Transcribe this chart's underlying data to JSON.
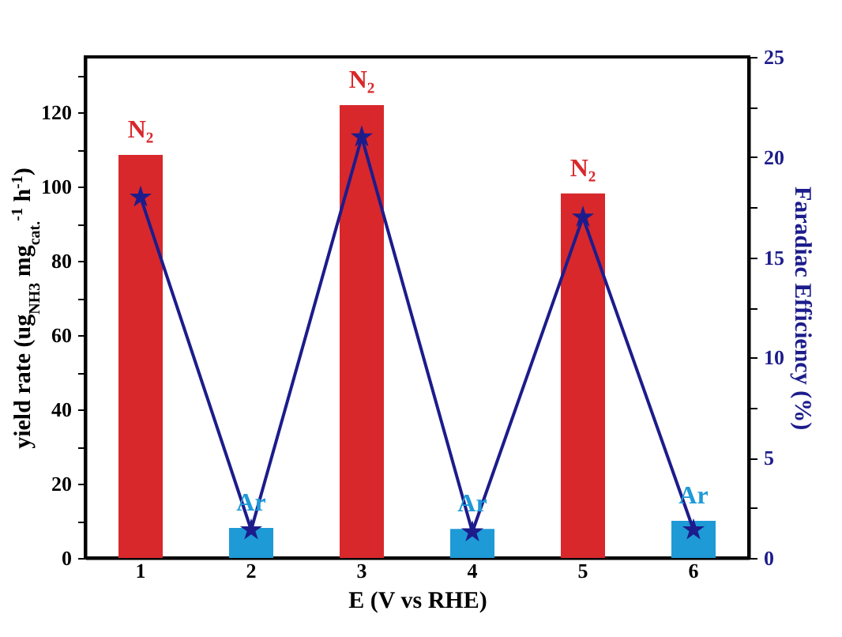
{
  "chart_data": {
    "type": "bar",
    "xlabel": "E (V vs RHE)",
    "ylabel": "yield rate (ug$_{NH3}$ mg$_{cat.}$$^{-1}$ h$^{-1}$)",
    "y2label": "Faradiac Efficiency (%)",
    "categories": [
      "1",
      "2",
      "3",
      "4",
      "5",
      "6"
    ],
    "series": [
      {
        "colors": [
          "#d8282c",
          "#1e9ad6",
          "#d8282c",
          "#1e9ad6",
          "#d8282c",
          "#1e9ad6"
        ],
        "values": [
          108.6,
          8.1,
          122,
          7.8,
          98.2,
          10
        ]
      },
      {
        "type": "line",
        "axis": "y2",
        "color": "#1c1c8c",
        "marker": "star",
        "values": [
          18,
          1.4,
          21,
          1.3,
          17,
          1.4
        ]
      }
    ],
    "ylim": [
      0,
      135
    ],
    "yticks": [
      0,
      {
        "value": 10,
        "label": null
      },
      20,
      {
        "value": 30,
        "label": null
      },
      40,
      {
        "value": 50,
        "label": null
      },
      60,
      {
        "value": 70,
        "label": null
      },
      80,
      {
        "value": 90,
        "label": null
      },
      100,
      {
        "value": 110,
        "label": null
      },
      120,
      {
        "value": 130,
        "label": null
      }
    ],
    "y2lim": [
      0,
      25
    ],
    "y2ticks": [
      0,
      {
        "value": 2.5,
        "label": null
      },
      5,
      {
        "value": 7.5,
        "label": null
      },
      10,
      {
        "value": 12.5,
        "label": null
      },
      15,
      {
        "value": 17.5,
        "label": null
      },
      20,
      {
        "value": 22.5,
        "label": null
      },
      25
    ],
    "annotations": [
      {
        "text": "N₂",
        "x": "1",
        "y": 108.6
      },
      {
        "text": "Ar",
        "x": "2",
        "y": 8.1
      },
      {
        "text": "N₂",
        "x": "3",
        "y": 122
      },
      {
        "text": "Ar",
        "x": "4",
        "y": 7.8
      },
      {
        "text": "N₂",
        "x": "5",
        "y": 98.2
      },
      {
        "text": "Ar",
        "x": "6",
        "y": 10
      }
    ],
    "grid": false
  }
}
